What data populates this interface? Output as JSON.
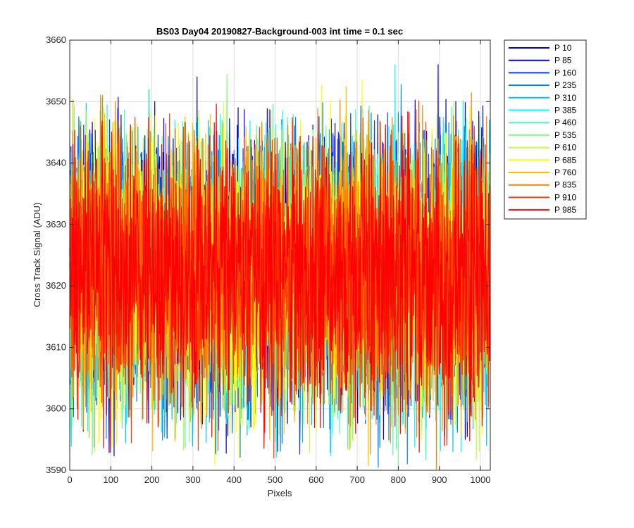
{
  "chart_data": {
    "type": "line",
    "title": "BS03 Day04 20190827-Background-003 int time = 0.1 sec",
    "xlabel": "Pixels",
    "ylabel": "Cross Track Signal (ADU)",
    "xlim": [
      0,
      1024
    ],
    "ylim": [
      3590,
      3660
    ],
    "xticks": [
      0,
      100,
      200,
      300,
      400,
      500,
      600,
      700,
      800,
      900,
      1000
    ],
    "yticks": [
      3590,
      3600,
      3610,
      3620,
      3630,
      3640,
      3650,
      3660
    ],
    "grid": true,
    "legend_position": "outside-top-right",
    "noise_summary": {
      "mean": 3622,
      "typical_low": 3603,
      "typical_high": 3642
    },
    "series": [
      {
        "name": "P 10",
        "color": "#0000cc",
        "peaks": [
          [
            207,
            3650
          ],
          [
            410,
            3649
          ],
          [
            897,
            3656
          ]
        ],
        "troughs": [
          [
            502,
            3597
          ]
        ]
      },
      {
        "name": "P 85",
        "color": "#0000ff",
        "peaks": [
          [
            940,
            3650
          ]
        ],
        "troughs": [
          [
            380,
            3599
          ]
        ]
      },
      {
        "name": "P 160",
        "color": "#0040ff",
        "peaks": [],
        "troughs": []
      },
      {
        "name": "P 235",
        "color": "#0080ff",
        "peaks": [],
        "troughs": []
      },
      {
        "name": "P 310",
        "color": "#00bfff",
        "peaks": [
          [
            1022,
            3647
          ]
        ],
        "troughs": []
      },
      {
        "name": "P 385",
        "color": "#00ffff",
        "peaks": [
          [
            792,
            3656
          ],
          [
            24,
            3647
          ]
        ],
        "troughs": [
          [
            953,
            3593
          ]
        ]
      },
      {
        "name": "P 460",
        "color": "#40ffbf",
        "peaks": [],
        "troughs": [
          [
            657,
            3596
          ]
        ]
      },
      {
        "name": "P 535",
        "color": "#80ff80",
        "peaks": [
          [
            205,
            3646
          ]
        ],
        "troughs": [
          [
            273,
            3599
          ]
        ]
      },
      {
        "name": "P 610",
        "color": "#bfff40",
        "peaks": [
          [
            122,
            3646
          ]
        ],
        "troughs": []
      },
      {
        "name": "P 685",
        "color": "#ffff00",
        "peaks": [],
        "troughs": [
          [
            353,
            3591
          ],
          [
            413,
            3592
          ]
        ]
      },
      {
        "name": "P 760",
        "color": "#ffbf00",
        "peaks": [
          [
            85,
            3648
          ]
        ],
        "troughs": [
          [
            817,
            3596
          ]
        ]
      },
      {
        "name": "P 835",
        "color": "#ff8000",
        "peaks": [
          [
            80,
            3651
          ]
        ],
        "troughs": [
          [
            18,
            3600
          ]
        ]
      },
      {
        "name": "P 910",
        "color": "#ff4000",
        "peaks": [
          [
            243,
            3648
          ],
          [
            985,
            3646
          ]
        ],
        "troughs": []
      },
      {
        "name": "P 985",
        "color": "#ff0000",
        "peaks": [],
        "troughs": [
          [
            912,
            3594
          ],
          [
            922,
            3599
          ]
        ]
      }
    ]
  }
}
